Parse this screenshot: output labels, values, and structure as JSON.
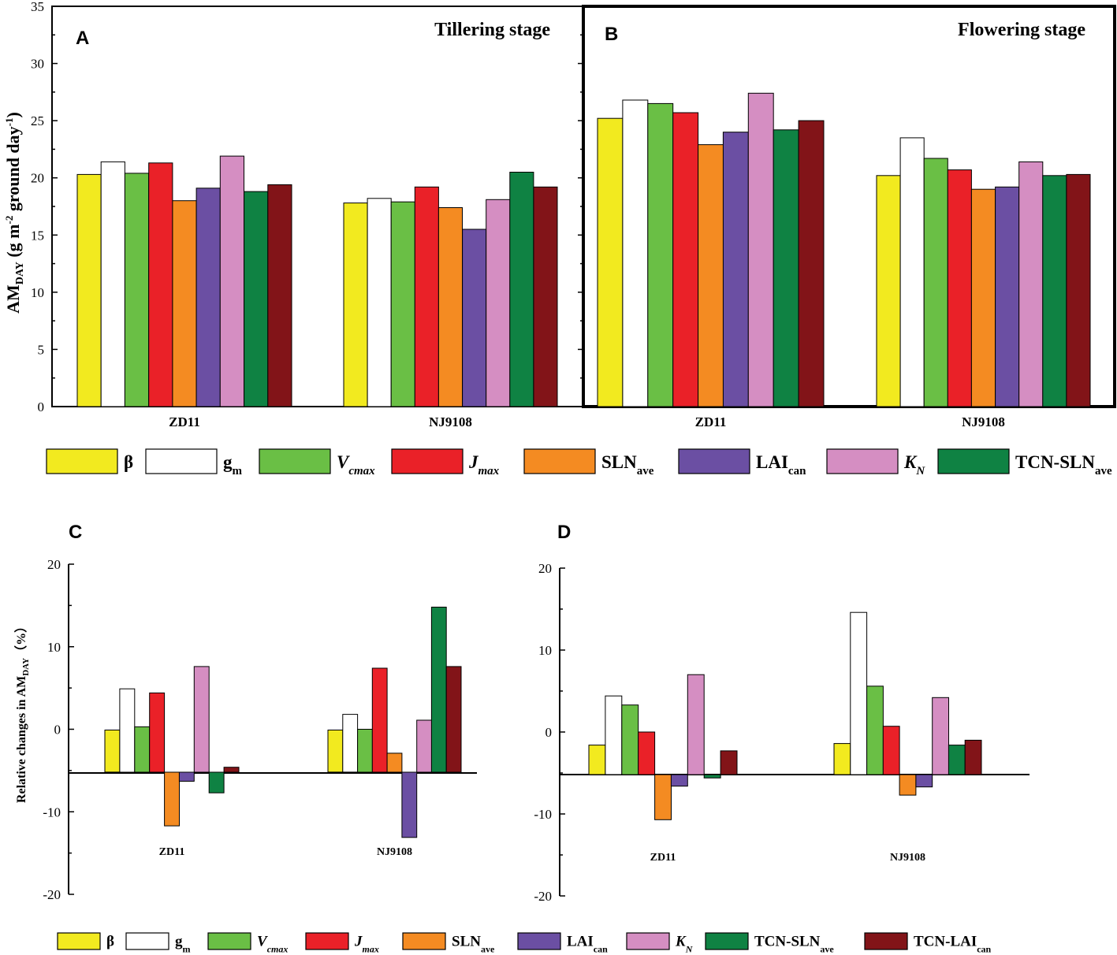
{
  "colors": {
    "beta": "#f2ea1f",
    "gm": "#ffffff",
    "Vcmax": "#6abf45",
    "Jmax": "#ea2128",
    "SLNave": "#f48b22",
    "LAIcan": "#6b4fa3",
    "KN": "#d58ec2",
    "TCN_SLNave": "#0f8243",
    "TCN_LAIcan": "#821418"
  },
  "legend": [
    {
      "key": "beta",
      "main": "β",
      "sub": "",
      "italic": false
    },
    {
      "key": "gm",
      "main": "g",
      "sub": "m",
      "italic": false
    },
    {
      "key": "Vcmax",
      "main": "V",
      "sub": "cmax",
      "italic": true
    },
    {
      "key": "Jmax",
      "main": "J",
      "sub": "max",
      "italic": true
    },
    {
      "key": "SLNave",
      "main": "SLN",
      "sub": "ave",
      "italic": false
    },
    {
      "key": "LAIcan",
      "main": "LAI",
      "sub": "can",
      "italic": false
    },
    {
      "key": "KN",
      "main": "K",
      "sub": "N",
      "italic": true
    },
    {
      "key": "TCN_SLNave",
      "main": "TCN-SLN",
      "sub": "ave",
      "italic": false
    },
    {
      "key": "TCN_LAIcan",
      "main": "TCN-LAI",
      "sub": "can",
      "italic": false
    }
  ],
  "top_y_label": {
    "main": "AM",
    "sub": "DAY",
    "rest": " (g m",
    "sup1": "-2",
    "rest2": " ground day",
    "sup2": "-1",
    "end": ")"
  },
  "bottom_y_label": {
    "main": "Relative changes in AM",
    "sub": "DAY",
    "end": "（%）"
  },
  "chart_data": [
    {
      "panel": "A",
      "type": "bar",
      "title": "Tillering stage",
      "categories": [
        "ZD11",
        "NJ9108"
      ],
      "ylim": [
        0,
        35
      ],
      "yticks": [
        0,
        5,
        10,
        15,
        20,
        25,
        30,
        35
      ],
      "tick_labels": [
        "0",
        "5",
        "10",
        "15",
        "20",
        "25",
        "30",
        "35"
      ],
      "ylabel": "AMDAY (g m-2 ground day-1)",
      "series": [
        {
          "name": "β",
          "values": [
            20.3,
            17.8
          ]
        },
        {
          "name": "gm",
          "values": [
            21.4,
            18.2
          ]
        },
        {
          "name": "Vcmax",
          "values": [
            20.4,
            17.9
          ]
        },
        {
          "name": "Jmax",
          "values": [
            21.3,
            19.2
          ]
        },
        {
          "name": "SLNave",
          "values": [
            18.0,
            17.4
          ]
        },
        {
          "name": "LAIcan",
          "values": [
            19.1,
            15.5
          ]
        },
        {
          "name": "KN",
          "values": [
            21.9,
            18.1
          ]
        },
        {
          "name": "TCN-SLNave",
          "values": [
            18.8,
            20.5
          ]
        },
        {
          "name": "TCN-LAIcan",
          "values": [
            19.4,
            19.2
          ]
        }
      ]
    },
    {
      "panel": "B",
      "type": "bar",
      "title": "Flowering stage",
      "categories": [
        "ZD11",
        "NJ9108"
      ],
      "ylim": [
        0,
        35
      ],
      "yticks": [
        0,
        5,
        10,
        15,
        20,
        25,
        30,
        35
      ],
      "series": [
        {
          "name": "β",
          "values": [
            25.2,
            20.2
          ]
        },
        {
          "name": "gm",
          "values": [
            26.8,
            23.5
          ]
        },
        {
          "name": "Vcmax",
          "values": [
            26.5,
            21.7
          ]
        },
        {
          "name": "Jmax",
          "values": [
            25.7,
            20.7
          ]
        },
        {
          "name": "SLNave",
          "values": [
            22.9,
            19.0
          ]
        },
        {
          "name": "LAIcan",
          "values": [
            24.0,
            19.2
          ]
        },
        {
          "name": "KN",
          "values": [
            27.4,
            21.4
          ]
        },
        {
          "name": "TCN-SLNave",
          "values": [
            24.2,
            20.2
          ]
        },
        {
          "name": "TCN-LAIcan",
          "values": [
            25.0,
            20.3
          ]
        }
      ]
    },
    {
      "panel": "C",
      "type": "bar",
      "title": "",
      "categories": [
        "ZD11",
        "NJ9108"
      ],
      "ylim": [
        -20,
        20
      ],
      "yticks": [
        -20,
        -10,
        0,
        10,
        20
      ],
      "tick_labels": [
        "-20",
        "-10",
        "0",
        "10",
        "20"
      ],
      "baseline": -5.2,
      "ylabel": "Relative changes in AMDAY（%）",
      "series": [
        {
          "name": "β",
          "values": [
            -0.1,
            -0.1
          ]
        },
        {
          "name": "gm",
          "values": [
            4.9,
            1.8
          ]
        },
        {
          "name": "Vcmax",
          "values": [
            0.3,
            0.0
          ]
        },
        {
          "name": "Jmax",
          "values": [
            4.4,
            7.4
          ]
        },
        {
          "name": "SLNave",
          "values": [
            -11.7,
            -2.9
          ]
        },
        {
          "name": "LAIcan",
          "values": [
            -6.3,
            -13.1
          ]
        },
        {
          "name": "KN",
          "values": [
            7.6,
            1.1
          ]
        },
        {
          "name": "TCN-SLNave",
          "values": [
            -7.7,
            14.8
          ]
        },
        {
          "name": "TCN-LAIcan",
          "values": [
            -4.6,
            7.6
          ]
        }
      ]
    },
    {
      "panel": "D",
      "type": "bar",
      "title": "",
      "categories": [
        "ZD11",
        "NJ9108"
      ],
      "ylim": [
        -20,
        20
      ],
      "yticks": [
        -20,
        -10,
        0,
        10,
        20
      ],
      "tick_labels": [
        "-20",
        "-10",
        "0",
        "10",
        "20"
      ],
      "baseline": -5.2,
      "series": [
        {
          "name": "β",
          "values": [
            -1.6,
            -1.4
          ]
        },
        {
          "name": "gm",
          "values": [
            4.4,
            14.6
          ]
        },
        {
          "name": "Vcmax",
          "values": [
            3.3,
            5.6
          ]
        },
        {
          "name": "Jmax",
          "values": [
            0.0,
            0.7
          ]
        },
        {
          "name": "SLNave",
          "values": [
            -10.7,
            -7.7
          ]
        },
        {
          "name": "LAIcan",
          "values": [
            -6.6,
            -6.7
          ]
        },
        {
          "name": "KN",
          "values": [
            7.0,
            4.2
          ]
        },
        {
          "name": "TCN-SLNave",
          "values": [
            -5.6,
            -1.6
          ]
        },
        {
          "name": "TCN-LAIcan",
          "values": [
            -2.3,
            -1.0
          ]
        }
      ]
    }
  ]
}
